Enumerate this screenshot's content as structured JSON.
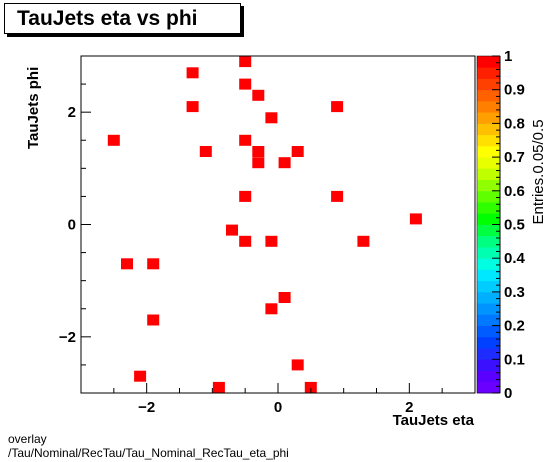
{
  "chart_data": {
    "type": "heatmap",
    "title": "TauJets eta vs phi",
    "xlabel": "TauJets eta",
    "ylabel": "TauJets phi",
    "zlabel": "Entries.0.05/0.5",
    "xlim": [
      -3.0,
      3.0
    ],
    "ylim": [
      -3.0,
      3.0
    ],
    "zlim": [
      0,
      1
    ],
    "x_ticks": [
      -2,
      0,
      2
    ],
    "y_ticks": [
      -2,
      0,
      2
    ],
    "x_tick_labels": [
      "−2",
      "0",
      "2"
    ],
    "y_tick_labels": [
      "−2",
      "0",
      "2"
    ],
    "z_ticks": [
      0,
      0.1,
      0.2,
      0.3,
      0.4,
      0.5,
      0.6,
      0.7,
      0.8,
      0.9,
      1
    ],
    "z_tick_labels": [
      "0",
      "0.1",
      "0.2",
      "0.3",
      "0.4",
      "0.5",
      "0.6",
      "0.7",
      "0.8",
      "0.9",
      "1"
    ],
    "bin_width_x": 0.1,
    "bin_height_y": 0.1,
    "cell_color": "#ff0000",
    "points": [
      {
        "x": -0.5,
        "y": 2.9,
        "z": 1
      },
      {
        "x": -1.3,
        "y": 2.7,
        "z": 1
      },
      {
        "x": -0.5,
        "y": 2.5,
        "z": 1
      },
      {
        "x": -0.3,
        "y": 2.3,
        "z": 1
      },
      {
        "x": -1.3,
        "y": 2.1,
        "z": 1
      },
      {
        "x": 0.9,
        "y": 2.1,
        "z": 1
      },
      {
        "x": -0.1,
        "y": 1.9,
        "z": 1
      },
      {
        "x": -2.5,
        "y": 1.5,
        "z": 1
      },
      {
        "x": -0.5,
        "y": 1.5,
        "z": 1
      },
      {
        "x": -1.1,
        "y": 1.3,
        "z": 1
      },
      {
        "x": -0.3,
        "y": 1.3,
        "z": 1
      },
      {
        "x": 0.3,
        "y": 1.3,
        "z": 1
      },
      {
        "x": -0.3,
        "y": 1.1,
        "z": 1
      },
      {
        "x": 0.1,
        "y": 1.1,
        "z": 1
      },
      {
        "x": -0.5,
        "y": 0.5,
        "z": 1
      },
      {
        "x": 0.9,
        "y": 0.5,
        "z": 1
      },
      {
        "x": 2.1,
        "y": 0.1,
        "z": 1
      },
      {
        "x": -0.7,
        "y": -0.1,
        "z": 1
      },
      {
        "x": -0.5,
        "y": -0.3,
        "z": 1
      },
      {
        "x": -0.1,
        "y": -0.3,
        "z": 1
      },
      {
        "x": 1.3,
        "y": -0.3,
        "z": 1
      },
      {
        "x": -2.3,
        "y": -0.7,
        "z": 1
      },
      {
        "x": -1.9,
        "y": -0.7,
        "z": 1
      },
      {
        "x": 0.1,
        "y": -1.3,
        "z": 1
      },
      {
        "x": -0.1,
        "y": -1.5,
        "z": 1
      },
      {
        "x": -1.9,
        "y": -1.7,
        "z": 1
      },
      {
        "x": 0.3,
        "y": -2.5,
        "z": 1
      },
      {
        "x": -2.1,
        "y": -2.7,
        "z": 1
      },
      {
        "x": -0.9,
        "y": -2.9,
        "z": 1
      },
      {
        "x": 0.5,
        "y": -2.9,
        "z": 1
      }
    ],
    "palette": [
      "#6a00ff",
      "#5a00ff",
      "#3a10ff",
      "#1e2cff",
      "#0040ff",
      "#005cff",
      "#0078ff",
      "#0094ff",
      "#00b0ff",
      "#00ccff",
      "#00e8ff",
      "#00ffe0",
      "#00ffb0",
      "#00ff80",
      "#00ff40",
      "#00ff00",
      "#30ff00",
      "#60ff00",
      "#90ff00",
      "#c0ff00",
      "#e8ff00",
      "#ffff00",
      "#ffe000",
      "#ffc000",
      "#ffa000",
      "#ff8000",
      "#ff6000",
      "#ff4000",
      "#ff2000",
      "#ff0000"
    ],
    "grid": false,
    "legend": "none"
  },
  "footer": {
    "line1": "overlay",
    "line2": "/Tau/Nominal/RecTau/Tau_Nominal_RecTau_eta_phi"
  }
}
